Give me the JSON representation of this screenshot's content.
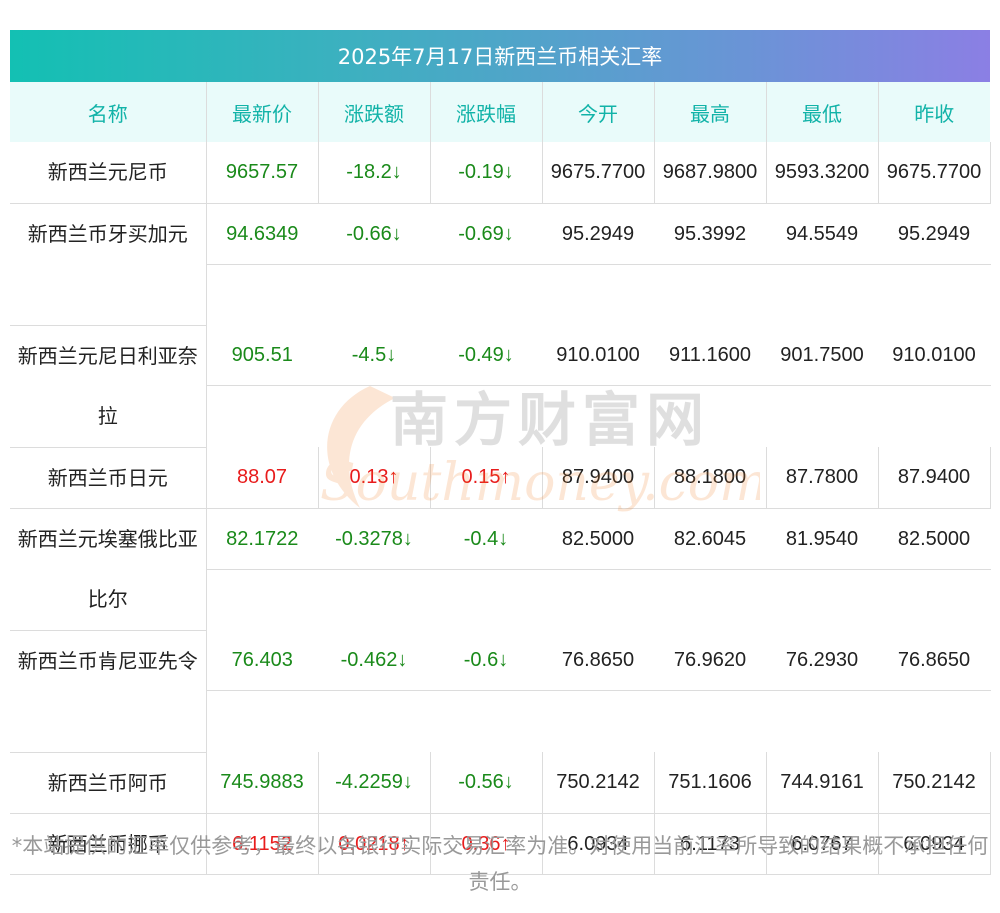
{
  "title": "2025年7月17日新西兰币相关汇率",
  "headers": [
    "名称",
    "最新价",
    "涨跌额",
    "涨跌幅",
    "今开",
    "最高",
    "最低",
    "昨收"
  ],
  "rows": [
    {
      "name": "新西兰元尼币",
      "latest": "9657.57",
      "change": "-18.2↓",
      "pct": "-0.19↓",
      "open": "9675.7700",
      "high": "9687.9800",
      "low": "9593.3200",
      "prev": "9675.7700",
      "dir": "down"
    },
    {
      "name": "新西兰币牙买加元",
      "latest": "94.6349",
      "change": "-0.66↓",
      "pct": "-0.69↓",
      "open": "95.2949",
      "high": "95.3992",
      "low": "94.5549",
      "prev": "95.2949",
      "dir": "down"
    },
    {
      "name": "新西兰元尼日利亚奈拉",
      "latest": "905.51",
      "change": "-4.5↓",
      "pct": "-0.49↓",
      "open": "910.0100",
      "high": "911.1600",
      "low": "901.7500",
      "prev": "910.0100",
      "dir": "down"
    },
    {
      "name": "新西兰币日元",
      "latest": "88.07",
      "change": "0.13↑",
      "pct": "0.15↑",
      "open": "87.9400",
      "high": "88.1800",
      "low": "87.7800",
      "prev": "87.9400",
      "dir": "up"
    },
    {
      "name": "新西兰元埃塞俄比亚比尔",
      "latest": "82.1722",
      "change": "-0.3278↓",
      "pct": "-0.4↓",
      "open": "82.5000",
      "high": "82.6045",
      "low": "81.9540",
      "prev": "82.5000",
      "dir": "down"
    },
    {
      "name": "新西兰币肯尼亚先令",
      "latest": "76.403",
      "change": "-0.462↓",
      "pct": "-0.6↓",
      "open": "76.8650",
      "high": "76.9620",
      "low": "76.2930",
      "prev": "76.8650",
      "dir": "down"
    },
    {
      "name": "新西兰币阿币",
      "latest": "745.9883",
      "change": "-4.2259↓",
      "pct": "-0.56↓",
      "open": "750.2142",
      "high": "751.1606",
      "low": "744.9161",
      "prev": "750.2142",
      "dir": "down"
    },
    {
      "name": "新西兰币挪币",
      "latest": "6.1152",
      "change": "0.0218↑",
      "pct": "0.36↑",
      "open": "6.0934",
      "high": "6.1173",
      "low": "6.0767",
      "prev": "6.0934",
      "dir": "up"
    }
  ],
  "watermark": {
    "cn": "南方财富网",
    "en": "Southmoney.com",
    "color": "#f07a1f"
  },
  "footer": "*本站提供的汇率仅供参考，最终以各银行实际交易汇率为准。对使用当前汇率所导致的结果概不承担任何责任。",
  "colors": {
    "header_text": "#12b3a8",
    "header_bg": "#e9fbfa",
    "down": "#1a8a1a",
    "up": "#e81c1c"
  }
}
